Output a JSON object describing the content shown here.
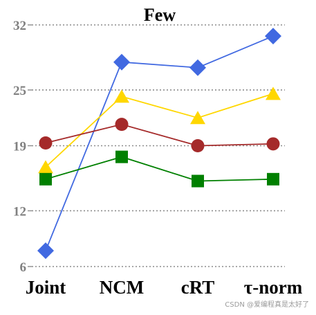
{
  "chart_data": {
    "type": "line",
    "title": "Few",
    "xlabel": "",
    "ylabel": "",
    "categories": [
      "Joint",
      "NCM",
      "cRT",
      "τ-norm"
    ],
    "yticks": [
      6,
      12,
      19,
      25,
      32
    ],
    "ylim": [
      6,
      32
    ],
    "grid": "horizontal dotted",
    "legend": "none",
    "series": [
      {
        "color": "#4169E1",
        "marker": "diamond",
        "values": [
          7.7,
          28.0,
          27.4,
          30.8
        ]
      },
      {
        "color": "#FFD700",
        "marker": "triangle",
        "values": [
          16.7,
          24.3,
          22.0,
          24.6
        ]
      },
      {
        "color": "#A52A2A",
        "marker": "circle",
        "values": [
          19.3,
          21.3,
          19.0,
          19.2
        ]
      },
      {
        "color": "#008000",
        "marker": "square",
        "values": [
          15.4,
          17.8,
          15.2,
          15.4
        ]
      }
    ]
  },
  "watermark": "CSDN @爱编程真是太好了"
}
